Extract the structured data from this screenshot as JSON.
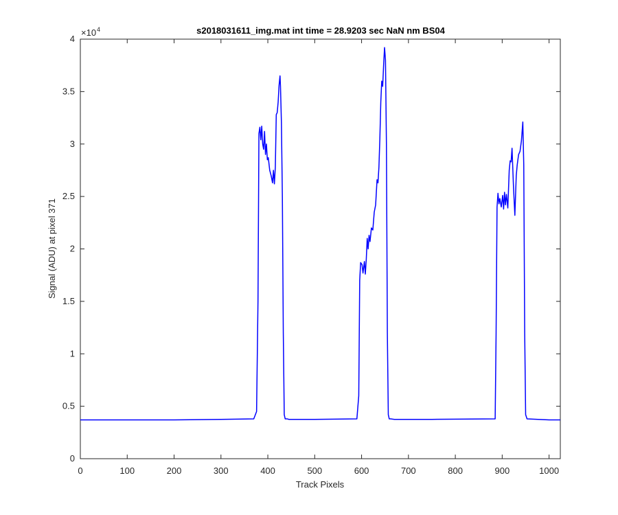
{
  "chart_data": {
    "type": "line",
    "title": "s2018031611_img.mat int time = 28.9203 sec  NaN nm BS04",
    "xlabel": "Track Pixels",
    "ylabel": "Signal (ADU) at pixel 371",
    "y_exponent_label": "×10",
    "y_exponent_power": "4",
    "xlim": [
      0,
      1024
    ],
    "ylim": [
      0,
      40000
    ],
    "xticks": [
      "0",
      "100",
      "200",
      "300",
      "400",
      "500",
      "600",
      "700",
      "800",
      "900",
      "1000"
    ],
    "yticks": [
      "0",
      "0.5",
      "1",
      "1.5",
      "2",
      "2.5",
      "3",
      "3.5",
      "4"
    ],
    "grid": false,
    "line_color": "#0000ff",
    "series": [
      {
        "x": [
          0,
          100,
          200,
          300,
          370,
          376,
          379,
          381,
          383,
          385,
          387,
          389,
          391,
          393,
          395,
          397,
          399,
          401,
          404,
          407,
          410,
          412,
          414,
          416,
          418,
          420,
          422,
          424,
          426,
          427,
          429,
          431,
          433,
          435,
          437,
          439,
          441,
          445,
          500,
          590,
          594,
          596,
          598,
          601,
          603,
          606,
          608,
          610,
          612,
          614,
          616,
          618,
          621,
          624,
          627,
          630,
          633,
          635,
          637,
          639,
          641,
          643,
          645,
          647,
          649,
          651,
          653,
          655,
          657,
          659,
          662,
          670,
          750,
          885,
          887,
          889,
          891,
          893,
          895,
          898,
          901,
          903,
          905,
          907,
          909,
          912,
          915,
          917,
          919,
          921,
          924,
          927,
          930,
          932,
          935,
          938,
          941,
          944,
          946,
          948,
          950,
          953,
          1000,
          1024
        ],
        "y": [
          3700,
          3700,
          3700,
          3750,
          3800,
          4500,
          15000,
          31000,
          31600,
          30400,
          31700,
          30000,
          29500,
          31200,
          29000,
          30000,
          28500,
          28700,
          27500,
          27000,
          26300,
          27500,
          26200,
          27800,
          32800,
          33000,
          34000,
          35600,
          36500,
          35500,
          32000,
          25000,
          12000,
          4200,
          3800,
          3800,
          3800,
          3750,
          3750,
          3800,
          6000,
          17000,
          18700,
          18500,
          17700,
          18800,
          17600,
          19000,
          21000,
          20000,
          21300,
          20700,
          22000,
          21800,
          23500,
          24200,
          26600,
          26300,
          27800,
          30500,
          34000,
          36000,
          35500,
          37500,
          39200,
          38000,
          30000,
          12000,
          4200,
          3800,
          3800,
          3750,
          3750,
          3800,
          12000,
          24000,
          25300,
          24300,
          24800,
          24000,
          25100,
          23800,
          25400,
          24200,
          25200,
          23900,
          27500,
          28400,
          28300,
          29600,
          26000,
          23200,
          27000,
          28000,
          29000,
          29300,
          30300,
          32100,
          28000,
          12000,
          4200,
          3800,
          3700,
          3700
        ]
      }
    ]
  }
}
